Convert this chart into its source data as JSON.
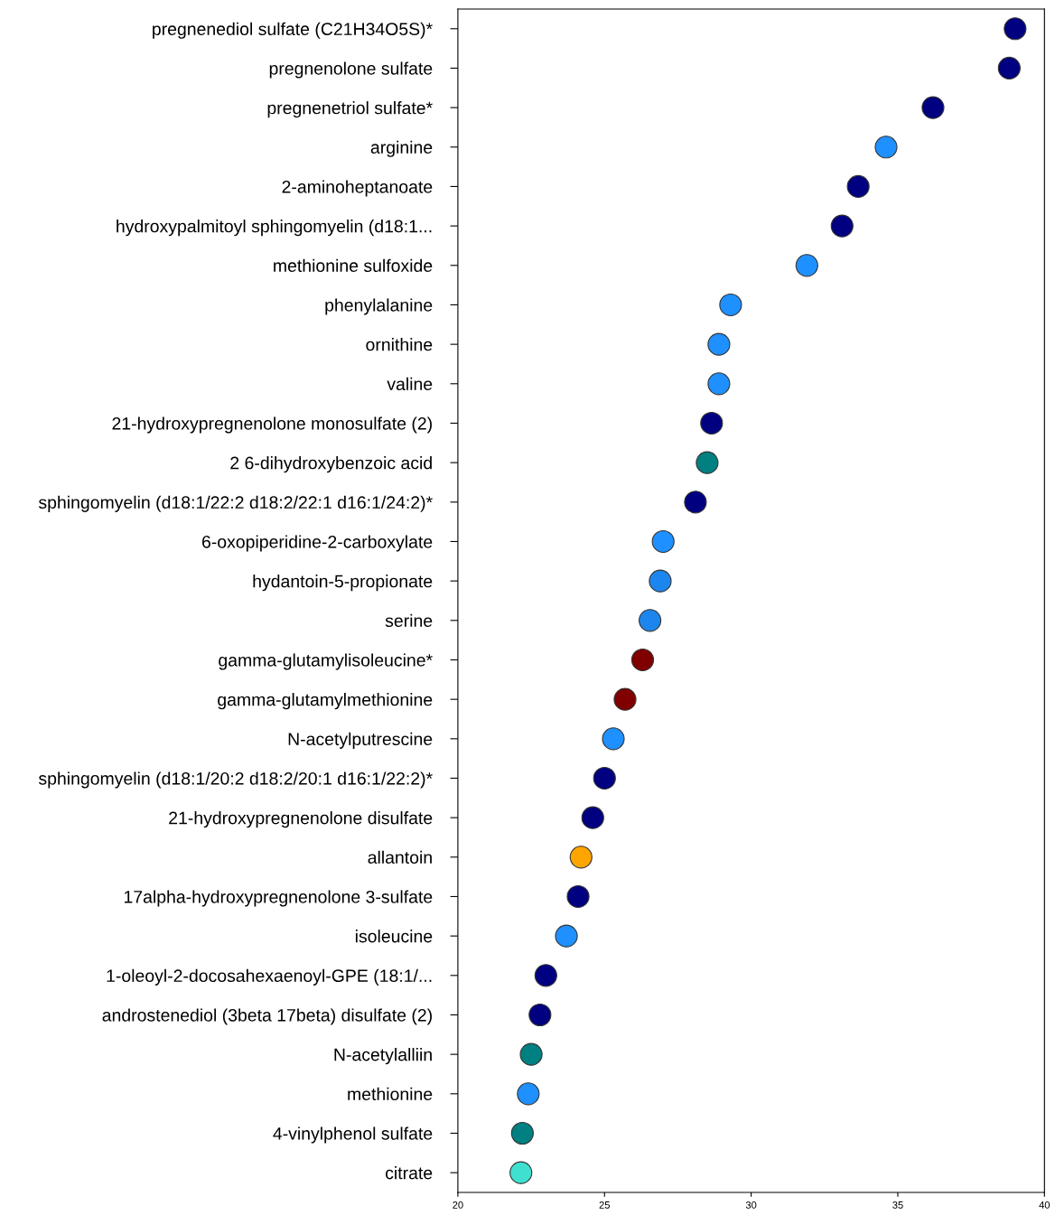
{
  "chart_data": {
    "type": "scatter",
    "orientation": "horizontal",
    "marker": "circle",
    "grid": false,
    "legend": false,
    "categories": [
      "pregnenediol sulfate (C21H34O5S)*",
      "pregnenolone sulfate",
      "pregnenetriol sulfate*",
      "arginine",
      "2-aminoheptanoate",
      "hydroxypalmitoyl sphingomyelin (d18:1...",
      "methionine sulfoxide",
      "phenylalanine",
      "ornithine",
      "valine",
      "21-hydroxypregnenolone monosulfate (2)",
      "2 6-dihydroxybenzoic acid",
      "sphingomyelin (d18:1/22:2 d18:2/22:1 d16:1/24:2)*",
      "6-oxopiperidine-2-carboxylate",
      "hydantoin-5-propionate",
      "serine",
      "gamma-glutamylisoleucine*",
      "gamma-glutamylmethionine",
      "N-acetylputrescine",
      "sphingomyelin (d18:1/20:2 d18:2/20:1 d16:1/22:2)*",
      "21-hydroxypregnenolone disulfate",
      "allantoin",
      "17alpha-hydroxypregnenolone 3-sulfate",
      "isoleucine",
      "1-oleoyl-2-docosahexaenoyl-GPE (18:1/...",
      "androstenediol (3beta 17beta) disulfate (2)",
      "N-acetylalliin",
      "methionine",
      "4-vinylphenol sulfate",
      "citrate"
    ],
    "values": [
      39.0,
      38.8,
      36.2,
      34.6,
      33.65,
      33.1,
      31.9,
      29.3,
      28.9,
      28.9,
      28.65,
      28.5,
      28.1,
      27.0,
      26.9,
      26.55,
      26.3,
      25.7,
      25.3,
      25.0,
      24.6,
      24.2,
      24.1,
      23.7,
      23.0,
      22.8,
      22.5,
      22.4,
      22.2,
      22.15
    ],
    "colors": [
      "#000080",
      "#000080",
      "#000080",
      "#1e90ff",
      "#000080",
      "#000080",
      "#1e90ff",
      "#1e90ff",
      "#1e90ff",
      "#1e90ff",
      "#000080",
      "#008080",
      "#000080",
      "#1e90ff",
      "#1c86ee",
      "#1c86ee",
      "#800000",
      "#800000",
      "#1e90ff",
      "#000080",
      "#000080",
      "#ffa500",
      "#000080",
      "#1e90ff",
      "#000080",
      "#000080",
      "#008080",
      "#1e90ff",
      "#008080",
      "#40e0d0"
    ],
    "xlim": [
      20,
      40
    ],
    "xticks": [
      20,
      25,
      30,
      35,
      40
    ]
  }
}
